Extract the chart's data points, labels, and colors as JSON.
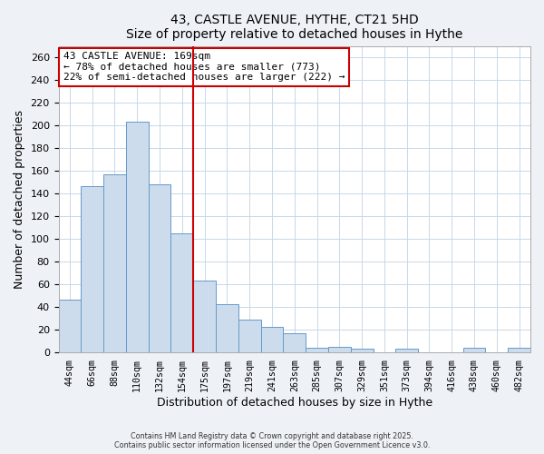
{
  "title": "43, CASTLE AVENUE, HYTHE, CT21 5HD",
  "subtitle": "Size of property relative to detached houses in Hythe",
  "xlabel": "Distribution of detached houses by size in Hythe",
  "ylabel": "Number of detached properties",
  "bar_labels": [
    "44sqm",
    "66sqm",
    "88sqm",
    "110sqm",
    "132sqm",
    "154sqm",
    "175sqm",
    "197sqm",
    "219sqm",
    "241sqm",
    "263sqm",
    "285sqm",
    "307sqm",
    "329sqm",
    "351sqm",
    "373sqm",
    "394sqm",
    "416sqm",
    "438sqm",
    "460sqm",
    "482sqm"
  ],
  "bar_values": [
    46,
    146,
    157,
    203,
    148,
    105,
    63,
    42,
    29,
    22,
    17,
    4,
    5,
    3,
    0,
    3,
    0,
    0,
    4,
    0,
    4
  ],
  "bar_color": "#ccdcec",
  "bar_edge_color": "#6699cc",
  "vline_x": 6,
  "vline_color": "#cc0000",
  "annotation_text": "43 CASTLE AVENUE: 169sqm\n← 78% of detached houses are smaller (773)\n22% of semi-detached houses are larger (222) →",
  "annotation_box_color": "#ffffff",
  "annotation_box_edge": "#cc0000",
  "ylim": [
    0,
    270
  ],
  "yticks": [
    0,
    20,
    40,
    60,
    80,
    100,
    120,
    140,
    160,
    180,
    200,
    220,
    240,
    260
  ],
  "footer1": "Contains HM Land Registry data © Crown copyright and database right 2025.",
  "footer2": "Contains public sector information licensed under the Open Government Licence v3.0.",
  "bg_color": "#eef2f7",
  "plot_bg_color": "#ffffff",
  "grid_color": "#c8d8e8"
}
